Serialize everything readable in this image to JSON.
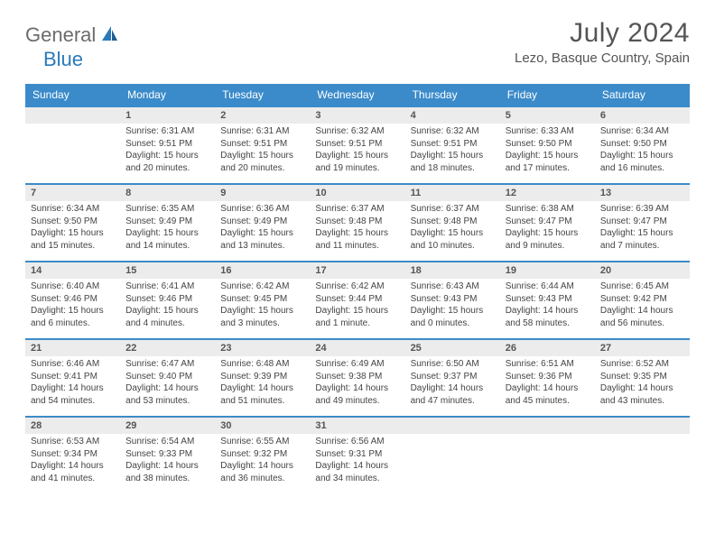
{
  "logo": {
    "general": "General",
    "blue": "Blue"
  },
  "title": "July 2024",
  "location": "Lezo, Basque Country, Spain",
  "colors": {
    "header_bg": "#3b8bca",
    "border": "#3b8bca",
    "daynum_bg": "#ececec",
    "text": "#444444",
    "logo_blue": "#2a7ab9",
    "logo_grey": "#6b6b6b"
  },
  "weekdays": [
    "Sunday",
    "Monday",
    "Tuesday",
    "Wednesday",
    "Thursday",
    "Friday",
    "Saturday"
  ],
  "weeks": [
    [
      null,
      {
        "n": "1",
        "sr": "Sunrise: 6:31 AM",
        "ss": "Sunset: 9:51 PM",
        "d1": "Daylight: 15 hours",
        "d2": "and 20 minutes."
      },
      {
        "n": "2",
        "sr": "Sunrise: 6:31 AM",
        "ss": "Sunset: 9:51 PM",
        "d1": "Daylight: 15 hours",
        "d2": "and 20 minutes."
      },
      {
        "n": "3",
        "sr": "Sunrise: 6:32 AM",
        "ss": "Sunset: 9:51 PM",
        "d1": "Daylight: 15 hours",
        "d2": "and 19 minutes."
      },
      {
        "n": "4",
        "sr": "Sunrise: 6:32 AM",
        "ss": "Sunset: 9:51 PM",
        "d1": "Daylight: 15 hours",
        "d2": "and 18 minutes."
      },
      {
        "n": "5",
        "sr": "Sunrise: 6:33 AM",
        "ss": "Sunset: 9:50 PM",
        "d1": "Daylight: 15 hours",
        "d2": "and 17 minutes."
      },
      {
        "n": "6",
        "sr": "Sunrise: 6:34 AM",
        "ss": "Sunset: 9:50 PM",
        "d1": "Daylight: 15 hours",
        "d2": "and 16 minutes."
      }
    ],
    [
      {
        "n": "7",
        "sr": "Sunrise: 6:34 AM",
        "ss": "Sunset: 9:50 PM",
        "d1": "Daylight: 15 hours",
        "d2": "and 15 minutes."
      },
      {
        "n": "8",
        "sr": "Sunrise: 6:35 AM",
        "ss": "Sunset: 9:49 PM",
        "d1": "Daylight: 15 hours",
        "d2": "and 14 minutes."
      },
      {
        "n": "9",
        "sr": "Sunrise: 6:36 AM",
        "ss": "Sunset: 9:49 PM",
        "d1": "Daylight: 15 hours",
        "d2": "and 13 minutes."
      },
      {
        "n": "10",
        "sr": "Sunrise: 6:37 AM",
        "ss": "Sunset: 9:48 PM",
        "d1": "Daylight: 15 hours",
        "d2": "and 11 minutes."
      },
      {
        "n": "11",
        "sr": "Sunrise: 6:37 AM",
        "ss": "Sunset: 9:48 PM",
        "d1": "Daylight: 15 hours",
        "d2": "and 10 minutes."
      },
      {
        "n": "12",
        "sr": "Sunrise: 6:38 AM",
        "ss": "Sunset: 9:47 PM",
        "d1": "Daylight: 15 hours",
        "d2": "and 9 minutes."
      },
      {
        "n": "13",
        "sr": "Sunrise: 6:39 AM",
        "ss": "Sunset: 9:47 PM",
        "d1": "Daylight: 15 hours",
        "d2": "and 7 minutes."
      }
    ],
    [
      {
        "n": "14",
        "sr": "Sunrise: 6:40 AM",
        "ss": "Sunset: 9:46 PM",
        "d1": "Daylight: 15 hours",
        "d2": "and 6 minutes."
      },
      {
        "n": "15",
        "sr": "Sunrise: 6:41 AM",
        "ss": "Sunset: 9:46 PM",
        "d1": "Daylight: 15 hours",
        "d2": "and 4 minutes."
      },
      {
        "n": "16",
        "sr": "Sunrise: 6:42 AM",
        "ss": "Sunset: 9:45 PM",
        "d1": "Daylight: 15 hours",
        "d2": "and 3 minutes."
      },
      {
        "n": "17",
        "sr": "Sunrise: 6:42 AM",
        "ss": "Sunset: 9:44 PM",
        "d1": "Daylight: 15 hours",
        "d2": "and 1 minute."
      },
      {
        "n": "18",
        "sr": "Sunrise: 6:43 AM",
        "ss": "Sunset: 9:43 PM",
        "d1": "Daylight: 15 hours",
        "d2": "and 0 minutes."
      },
      {
        "n": "19",
        "sr": "Sunrise: 6:44 AM",
        "ss": "Sunset: 9:43 PM",
        "d1": "Daylight: 14 hours",
        "d2": "and 58 minutes."
      },
      {
        "n": "20",
        "sr": "Sunrise: 6:45 AM",
        "ss": "Sunset: 9:42 PM",
        "d1": "Daylight: 14 hours",
        "d2": "and 56 minutes."
      }
    ],
    [
      {
        "n": "21",
        "sr": "Sunrise: 6:46 AM",
        "ss": "Sunset: 9:41 PM",
        "d1": "Daylight: 14 hours",
        "d2": "and 54 minutes."
      },
      {
        "n": "22",
        "sr": "Sunrise: 6:47 AM",
        "ss": "Sunset: 9:40 PM",
        "d1": "Daylight: 14 hours",
        "d2": "and 53 minutes."
      },
      {
        "n": "23",
        "sr": "Sunrise: 6:48 AM",
        "ss": "Sunset: 9:39 PM",
        "d1": "Daylight: 14 hours",
        "d2": "and 51 minutes."
      },
      {
        "n": "24",
        "sr": "Sunrise: 6:49 AM",
        "ss": "Sunset: 9:38 PM",
        "d1": "Daylight: 14 hours",
        "d2": "and 49 minutes."
      },
      {
        "n": "25",
        "sr": "Sunrise: 6:50 AM",
        "ss": "Sunset: 9:37 PM",
        "d1": "Daylight: 14 hours",
        "d2": "and 47 minutes."
      },
      {
        "n": "26",
        "sr": "Sunrise: 6:51 AM",
        "ss": "Sunset: 9:36 PM",
        "d1": "Daylight: 14 hours",
        "d2": "and 45 minutes."
      },
      {
        "n": "27",
        "sr": "Sunrise: 6:52 AM",
        "ss": "Sunset: 9:35 PM",
        "d1": "Daylight: 14 hours",
        "d2": "and 43 minutes."
      }
    ],
    [
      {
        "n": "28",
        "sr": "Sunrise: 6:53 AM",
        "ss": "Sunset: 9:34 PM",
        "d1": "Daylight: 14 hours",
        "d2": "and 41 minutes."
      },
      {
        "n": "29",
        "sr": "Sunrise: 6:54 AM",
        "ss": "Sunset: 9:33 PM",
        "d1": "Daylight: 14 hours",
        "d2": "and 38 minutes."
      },
      {
        "n": "30",
        "sr": "Sunrise: 6:55 AM",
        "ss": "Sunset: 9:32 PM",
        "d1": "Daylight: 14 hours",
        "d2": "and 36 minutes."
      },
      {
        "n": "31",
        "sr": "Sunrise: 6:56 AM",
        "ss": "Sunset: 9:31 PM",
        "d1": "Daylight: 14 hours",
        "d2": "and 34 minutes."
      },
      null,
      null,
      null
    ]
  ]
}
